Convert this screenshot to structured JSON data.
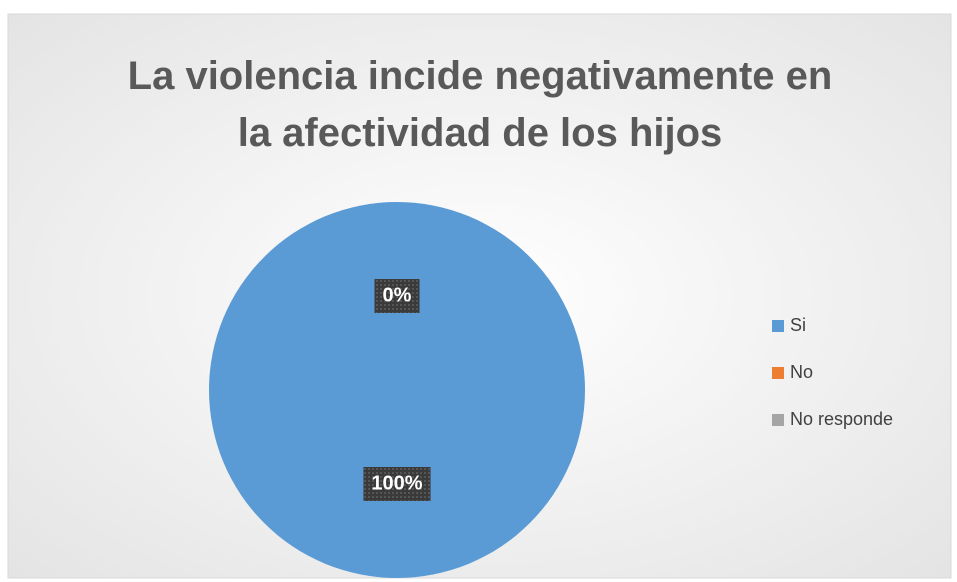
{
  "chart_data": {
    "type": "pie",
    "title": "La violencia incide negativamente en la afectividad de los hijos",
    "categories": [
      "Si",
      "No",
      "No responde"
    ],
    "values": [
      100,
      0,
      0
    ],
    "value_labels": [
      "100%",
      "0%",
      "0%"
    ],
    "colors": [
      "#5b9bd5",
      "#ed7d31",
      "#a5a5a5"
    ],
    "legend": "right"
  }
}
